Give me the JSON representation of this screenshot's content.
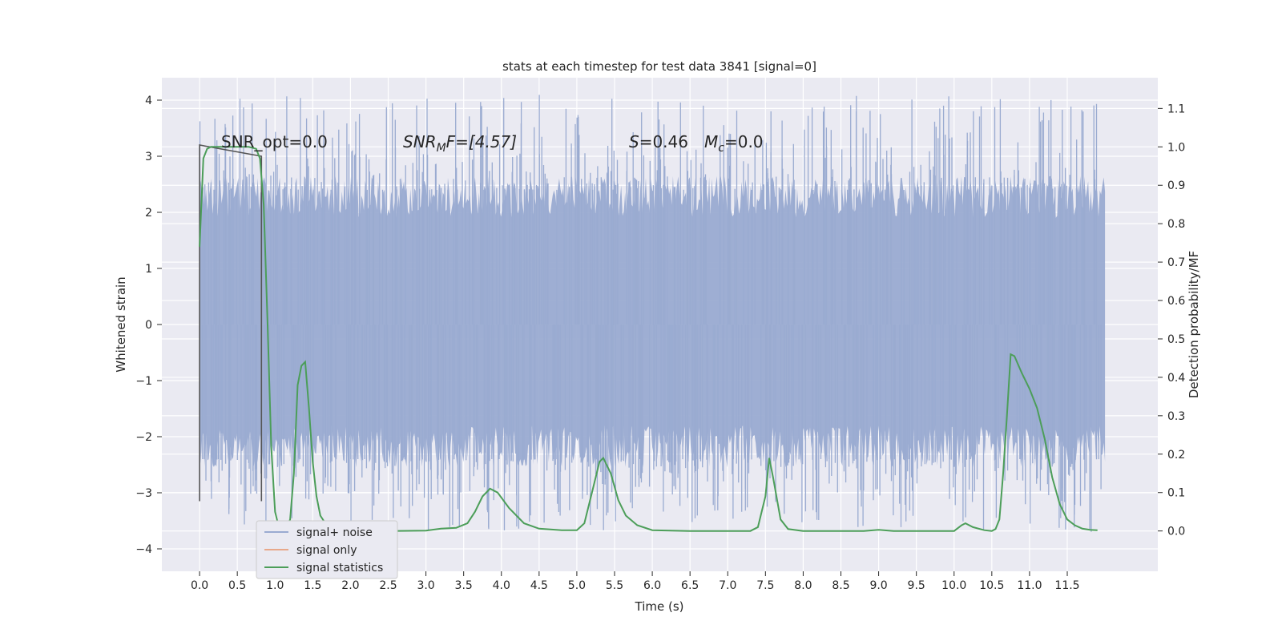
{
  "chart_data": {
    "type": "line",
    "title": "stats at each timestep for test data 3841 [signal=0]",
    "xlabel": "Time (s)",
    "ylabel": "Whitened strain",
    "y2label": "Detection probability/MF",
    "xlim": [
      -0.5,
      12.7
    ],
    "ylim": [
      -4.4,
      4.4
    ],
    "y2lim": [
      -0.105,
      1.18
    ],
    "x_ticks": [
      0.0,
      0.5,
      1.0,
      1.5,
      2.0,
      2.5,
      3.0,
      3.5,
      4.0,
      4.5,
      5.0,
      5.5,
      6.0,
      6.5,
      7.0,
      7.5,
      8.0,
      8.5,
      9.0,
      9.5,
      10.0,
      10.5,
      11.0,
      11.5
    ],
    "x_tick_labels": [
      "0.0",
      "0.5",
      "1.0",
      "1.5",
      "2.0",
      "2.5",
      "3.0",
      "3.5",
      "4.0",
      "4.5",
      "5.0",
      "5.5",
      "6.0",
      "6.5",
      "7.0",
      "7.5",
      "8.0",
      "8.5",
      "9.0",
      "9.5",
      "10.0",
      "10.5",
      "11.0",
      "11.5"
    ],
    "y_ticks": [
      -4,
      -3,
      -2,
      -1,
      0,
      1,
      2,
      3,
      4
    ],
    "y_tick_labels": [
      "−4",
      "−3",
      "−2",
      "−1",
      "0",
      "1",
      "2",
      "3",
      "4"
    ],
    "y2_ticks": [
      0.0,
      0.1,
      0.2,
      0.3,
      0.4,
      0.5,
      0.6,
      0.7,
      0.8,
      0.9,
      1.0,
      1.1
    ],
    "y2_tick_labels": [
      "0.0",
      "0.1",
      "0.2",
      "0.3",
      "0.4",
      "0.5",
      "0.6",
      "0.7",
      "0.8",
      "0.9",
      "1.0",
      "1.1"
    ],
    "grid": true,
    "legend_position": "lower-left",
    "annotations": {
      "snr_opt": "SNR_opt=0.0",
      "snr_mf_main": "SNR",
      "snr_mf_sub": "M",
      "snr_mf_rest": "F=[4.57]",
      "s_main": "S",
      "s_rest": "=0.46",
      "mc_main": "M",
      "mc_sub": "c",
      "mc_rest": "=0.0"
    },
    "series": [
      {
        "name": "signal+ noise",
        "color": "#9aabd1",
        "axis": "left",
        "x_range": [
          0.0,
          12.0
        ],
        "core_range": [
          -1.8,
          1.9
        ],
        "envelope_max": 4.1,
        "envelope_min": -3.7
      },
      {
        "name": "signal only",
        "color": "#e8a88a",
        "axis": "left",
        "x": [
          0.0,
          0.0,
          0.82,
          0.82
        ],
        "y": [
          -3.15,
          3.2,
          3.0,
          -3.15
        ]
      },
      {
        "name": "signal statistics",
        "color": "#4c9e59",
        "axis": "right",
        "x": [
          0.0,
          0.05,
          0.1,
          0.15,
          0.25,
          0.4,
          0.55,
          0.65,
          0.75,
          0.8,
          0.85,
          0.9,
          0.95,
          1.0,
          1.05,
          1.1,
          1.15,
          1.2,
          1.25,
          1.3,
          1.35,
          1.4,
          1.45,
          1.5,
          1.55,
          1.6,
          1.7,
          1.85,
          2.0,
          2.5,
          3.0,
          3.2,
          3.4,
          3.55,
          3.65,
          3.75,
          3.85,
          3.95,
          4.1,
          4.3,
          4.5,
          4.8,
          5.0,
          5.1,
          5.2,
          5.3,
          5.35,
          5.45,
          5.55,
          5.65,
          5.8,
          6.0,
          6.5,
          7.0,
          7.3,
          7.4,
          7.5,
          7.55,
          7.6,
          7.7,
          7.8,
          8.0,
          8.5,
          8.8,
          9.0,
          9.2,
          9.5,
          10.0,
          10.1,
          10.15,
          10.25,
          10.4,
          10.5,
          10.55,
          10.6,
          10.65,
          10.7,
          10.75,
          10.8,
          10.9,
          11.0,
          11.1,
          11.2,
          11.3,
          11.4,
          11.5,
          11.6,
          11.7,
          11.8,
          11.9
        ],
        "y": [
          0.74,
          0.97,
          0.995,
          1.0,
          1.0,
          1.0,
          1.0,
          1.0,
          0.995,
          0.97,
          0.85,
          0.55,
          0.22,
          0.05,
          0.01,
          0.005,
          0.008,
          0.03,
          0.15,
          0.38,
          0.43,
          0.44,
          0.32,
          0.18,
          0.09,
          0.04,
          0.01,
          0.002,
          0.0,
          0.0,
          0.001,
          0.006,
          0.008,
          0.02,
          0.05,
          0.09,
          0.11,
          0.1,
          0.06,
          0.02,
          0.006,
          0.002,
          0.002,
          0.02,
          0.1,
          0.18,
          0.19,
          0.15,
          0.08,
          0.04,
          0.015,
          0.002,
          0.0,
          0.0,
          0.0,
          0.01,
          0.09,
          0.19,
          0.14,
          0.03,
          0.005,
          0.0,
          0.0,
          0.0,
          0.003,
          0.0,
          0.0,
          0.0,
          0.015,
          0.02,
          0.01,
          0.002,
          0.0,
          0.005,
          0.03,
          0.15,
          0.3,
          0.46,
          0.455,
          0.41,
          0.37,
          0.32,
          0.24,
          0.14,
          0.07,
          0.03,
          0.015,
          0.006,
          0.003,
          0.002
        ]
      }
    ]
  }
}
